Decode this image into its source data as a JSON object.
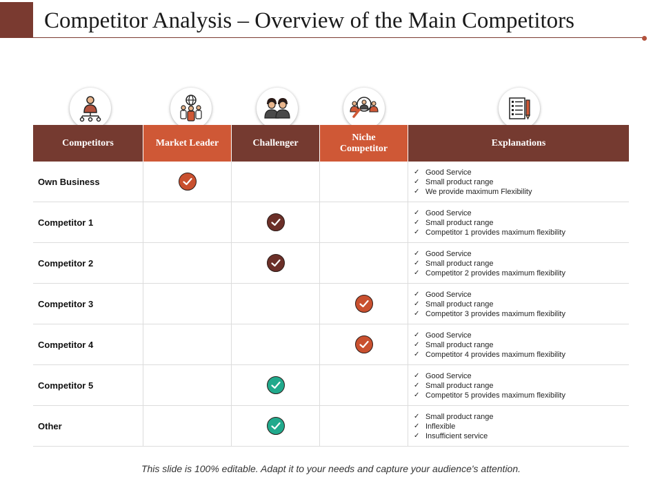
{
  "title": "Competitor Analysis – Overview of the Main Competitors",
  "icons": [
    "org-chart-icon",
    "global-team-icon",
    "two-people-icon",
    "magnify-people-icon",
    "checklist-icon"
  ],
  "columns": [
    {
      "label": "Competitors",
      "color": "#753a30"
    },
    {
      "label": "Market Leader",
      "color": "#cf5836"
    },
    {
      "label": "Challenger",
      "color": "#753a30"
    },
    {
      "label": "Niche Competitor",
      "color": "#cf5836"
    },
    {
      "label": "Explanations",
      "color": "#753a30"
    }
  ],
  "check_colors": {
    "orange": "#c9502f",
    "brown": "#6b2f28",
    "teal": "#21a98c"
  },
  "rows": [
    {
      "name": "Own Business",
      "mark": "Market Leader",
      "check_color": "orange",
      "explanations": [
        "Good Service",
        "Small product range",
        "We provide maximum Flexibility"
      ]
    },
    {
      "name": "Competitor 1",
      "mark": "Challenger",
      "check_color": "brown",
      "explanations": [
        "Good Service",
        "Small product range",
        "Competitor 1 provides maximum flexibility"
      ]
    },
    {
      "name": "Competitor 2",
      "mark": "Challenger",
      "check_color": "brown",
      "explanations": [
        "Good Service",
        "Small product range",
        "Competitor 2 provides maximum flexibility"
      ]
    },
    {
      "name": "Competitor 3",
      "mark": "Niche Competitor",
      "check_color": "orange",
      "explanations": [
        "Good Service",
        "Small product range",
        "Competitor 3 provides maximum flexibility"
      ]
    },
    {
      "name": "Competitor 4",
      "mark": "Niche Competitor",
      "check_color": "orange",
      "explanations": [
        "Good Service",
        "Small product range",
        "Competitor 4 provides maximum flexibility"
      ]
    },
    {
      "name": "Competitor 5",
      "mark": "Challenger",
      "check_color": "teal",
      "explanations": [
        "Good Service",
        "Small product range",
        "Competitor 5 provides maximum flexibility"
      ]
    },
    {
      "name": "Other",
      "mark": "Challenger",
      "check_color": "teal",
      "explanations": [
        "Small product range",
        "Inflexible",
        "Insufficient service"
      ]
    }
  ],
  "footer": "This slide is 100% editable.  Adapt it to your needs and capture your audience's attention."
}
